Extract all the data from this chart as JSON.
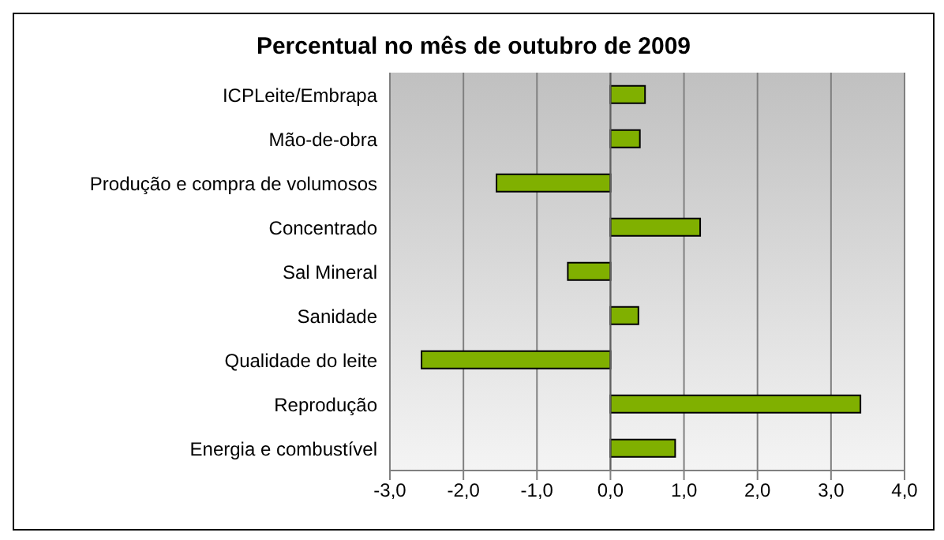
{
  "chart_data": {
    "type": "bar",
    "orientation": "horizontal",
    "title": "Percentual no mês de outubro de 2009",
    "categories": [
      "ICPLeite/Embrapa",
      "Mão-de-obra",
      "Produção e compra de volumosos",
      "Concentrado",
      "Sal Mineral",
      "Sanidade",
      "Qualidade do leite",
      "Reprodução",
      "Energia e combustível"
    ],
    "values": [
      0.47,
      0.4,
      -1.55,
      1.22,
      -0.58,
      0.38,
      -2.57,
      3.4,
      0.88
    ],
    "color": "#80b000",
    "xlim": [
      -3,
      4
    ],
    "xticks": [
      {
        "value": -3,
        "label": "-3,0"
      },
      {
        "value": -2,
        "label": "-2,0"
      },
      {
        "value": -1,
        "label": "-1,0"
      },
      {
        "value": 0,
        "label": "0,0"
      },
      {
        "value": 1,
        "label": "1,0"
      },
      {
        "value": 2,
        "label": "2,0"
      },
      {
        "value": 3,
        "label": "3,0"
      },
      {
        "value": 4,
        "label": "4,0"
      }
    ],
    "grid": "x"
  }
}
